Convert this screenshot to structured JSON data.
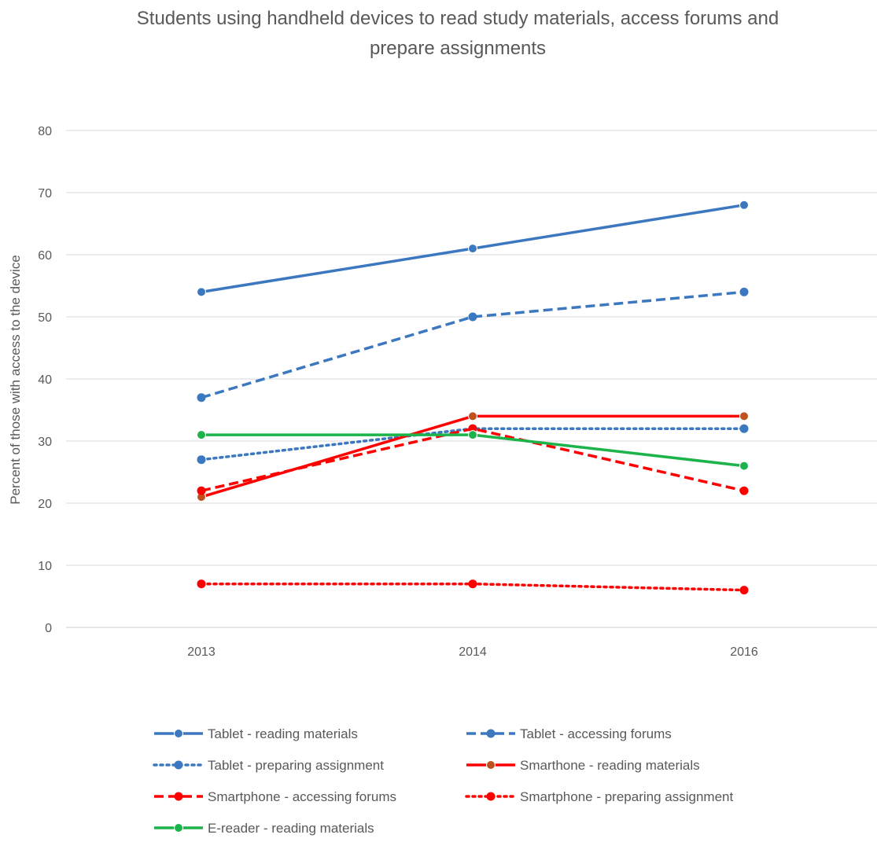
{
  "chart_data": {
    "type": "line",
    "title": "Students using handheld devices to read study materials, access forums and prepare assignments",
    "title_lines": [
      "Students using handheld devices to read study materials, access forums and",
      "prepare assignments"
    ],
    "xlabel": "",
    "ylabel": "Percent of those with access to the device",
    "categories": [
      "2013",
      "2014",
      "2016"
    ],
    "ylim": [
      0,
      80
    ],
    "yticks": [
      0,
      10,
      20,
      30,
      40,
      50,
      60,
      70,
      80
    ],
    "ytick_labels": [
      "0",
      "10",
      "20",
      "30",
      "40",
      "50",
      "60",
      "70",
      "80"
    ],
    "grid": "horizontal",
    "legend_position": "bottom",
    "series": [
      {
        "name": "Tablet - reading materials",
        "values": [
          54,
          61,
          68
        ],
        "color": "#3C78C0",
        "line_style": "solid"
      },
      {
        "name": "Tablet - accessing forums",
        "values": [
          37,
          50,
          54
        ],
        "color": "#3C78C0",
        "line_style": "dashed"
      },
      {
        "name": "Tablet - preparing assignment",
        "values": [
          27,
          32,
          32
        ],
        "color": "#3C78C0",
        "line_style": "dotted"
      },
      {
        "name": "Smarthone - reading materials",
        "values": [
          21,
          34,
          34
        ],
        "color": "#FF0000",
        "marker_color": "#C0511E",
        "line_style": "solid"
      },
      {
        "name": "Smartphone - accessing forums",
        "values": [
          22,
          32,
          22
        ],
        "color": "#FF0000",
        "line_style": "dashed"
      },
      {
        "name": "Smartphone - preparing assignment",
        "values": [
          7,
          7,
          6
        ],
        "color": "#FF0000",
        "line_style": "dotted"
      },
      {
        "name": "E-reader - reading materials",
        "values": [
          31,
          31,
          26
        ],
        "color": "#1DB34B",
        "line_style": "solid"
      }
    ]
  }
}
